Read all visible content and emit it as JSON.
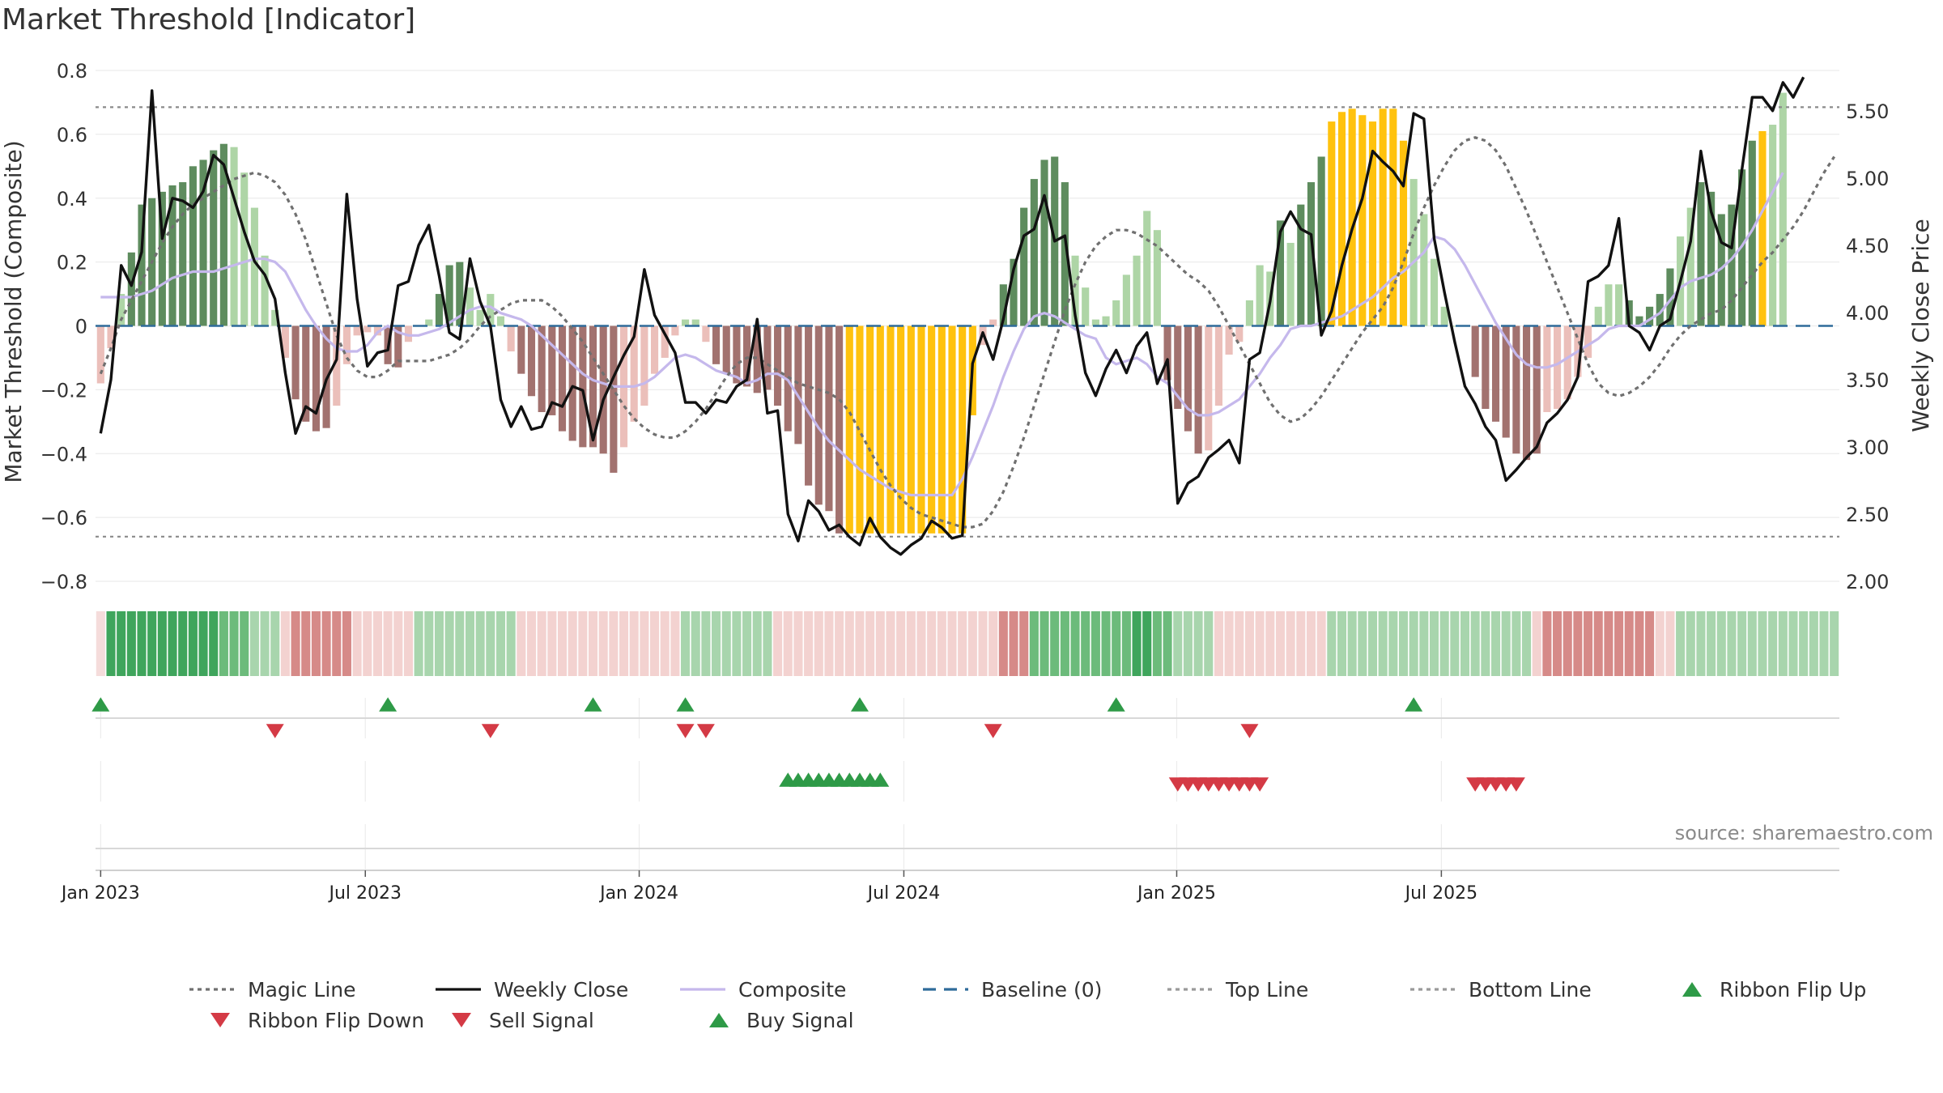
{
  "title": "Market Threshold [Indicator]",
  "source": "source: sharemaestro.com",
  "colors": {
    "bar_strong_up": "#5e8c5e",
    "bar_weak_up": "#aed5a6",
    "bar_strong_down": "#a2726f",
    "bar_weak_down": "#ebbfba",
    "bar_extreme": "#ffc20e",
    "ribbon_up_dark": "#3fa55c",
    "ribbon_up_light": "#a8d5ad",
    "ribbon_down_dark": "#d68a88",
    "ribbon_down_light": "#f3d2d0",
    "close": "#111111",
    "composite": "#c5b8ec",
    "magic": "#707070",
    "baseline": "#2f6b9a",
    "buy": "#2e9a47",
    "sell": "#d43a45"
  },
  "chart_data": {
    "type": "bar",
    "title": "Market Threshold [Indicator]",
    "ylabel": "Market Threshold (Composite)",
    "y2label": "Weekly Close Price",
    "ylim": [
      -0.8,
      0.8
    ],
    "y2lim": [
      2.0,
      5.8
    ],
    "yticks": [
      "0.8",
      "0.6",
      "0.4",
      "0.2",
      "0",
      "−0.2",
      "−0.4",
      "−0.6",
      "−0.8"
    ],
    "y2ticks": [
      "5.50",
      "5.00",
      "4.50",
      "4.00",
      "3.50",
      "3.00",
      "2.50",
      "2.00"
    ],
    "xticks": [
      "Jan 2023",
      "Jul 2023",
      "Jan 2024",
      "Jul 2024",
      "Jan 2025",
      "Jul 2025"
    ],
    "top_line": 0.685,
    "bottom_line": -0.66,
    "baseline": 0,
    "series": [
      {
        "name": "Magic Line",
        "values": [
          -0.15,
          -0.07,
          0.02,
          0.08,
          0.14,
          0.2,
          0.26,
          0.31,
          0.35,
          0.38,
          0.4,
          0.42,
          0.44,
          0.46,
          0.47,
          0.48,
          0.47,
          0.45,
          0.41,
          0.35,
          0.27,
          0.17,
          0.07,
          -0.03,
          -0.1,
          -0.14,
          -0.16,
          -0.16,
          -0.14,
          -0.11,
          -0.11,
          -0.11,
          -0.11,
          -0.1,
          -0.09,
          -0.07,
          -0.04,
          0,
          0.03,
          0.05,
          0.07,
          0.08,
          0.08,
          0.08,
          0.06,
          0.03,
          -0.01,
          -0.05,
          -0.1,
          -0.15,
          -0.2,
          -0.25,
          -0.29,
          -0.32,
          -0.34,
          -0.35,
          -0.35,
          -0.33,
          -0.3,
          -0.26,
          -0.21,
          -0.16,
          -0.12,
          -0.1,
          -0.1,
          -0.12,
          -0.14,
          -0.16,
          -0.18,
          -0.19,
          -0.2,
          -0.21,
          -0.23,
          -0.27,
          -0.33,
          -0.39,
          -0.45,
          -0.5,
          -0.54,
          -0.57,
          -0.59,
          -0.6,
          -0.61,
          -0.62,
          -0.63,
          -0.63,
          -0.62,
          -0.58,
          -0.52,
          -0.44,
          -0.35,
          -0.25,
          -0.15,
          -0.05,
          0.05,
          0.13,
          0.2,
          0.25,
          0.28,
          0.3,
          0.3,
          0.29,
          0.27,
          0.25,
          0.22,
          0.19,
          0.16,
          0.14,
          0.11,
          0.06,
          0,
          -0.06,
          -0.12,
          -0.18,
          -0.24,
          -0.28,
          -0.3,
          -0.29,
          -0.26,
          -0.22,
          -0.17,
          -0.12,
          -0.07,
          -0.02,
          0.02,
          0.06,
          0.12,
          0.2,
          0.29,
          0.37,
          0.44,
          0.5,
          0.55,
          0.58,
          0.59,
          0.58,
          0.55,
          0.5,
          0.43,
          0.36,
          0.28,
          0.2,
          0.12,
          0.04,
          -0.04,
          -0.12,
          -0.18,
          -0.21,
          -0.22,
          -0.21,
          -0.19,
          -0.16,
          -0.12,
          -0.07,
          -0.03,
          0,
          0.02,
          0.04,
          0.05,
          0.08,
          0.12,
          0.16,
          0.2,
          0.23,
          0.27,
          0.31,
          0.36,
          0.42,
          0.48,
          0.53
        ]
      },
      {
        "name": "Weekly Close",
        "values": [
          3.1,
          3.5,
          4.35,
          4.2,
          4.45,
          5.65,
          4.55,
          4.85,
          4.83,
          4.78,
          4.9,
          5.17,
          5.1,
          4.85,
          4.6,
          4.38,
          4.28,
          4.1,
          3.55,
          3.1,
          3.3,
          3.25,
          3.5,
          3.65,
          4.88,
          4.1,
          3.6,
          3.7,
          3.72,
          4.2,
          4.23,
          4.5,
          4.65,
          4.27,
          3.85,
          3.8,
          4.4,
          4.08,
          3.9,
          3.35,
          3.15,
          3.3,
          3.13,
          3.15,
          3.33,
          3.3,
          3.45,
          3.42,
          3.05,
          3.35,
          3.52,
          3.68,
          3.82,
          4.32,
          3.98,
          3.84,
          3.7,
          3.33,
          3.33,
          3.25,
          3.35,
          3.33,
          3.45,
          3.5,
          3.95,
          3.25,
          3.27,
          2.5,
          2.3,
          2.6,
          2.52,
          2.38,
          2.42,
          2.33,
          2.27,
          2.47,
          2.33,
          2.25,
          2.2,
          2.27,
          2.32,
          2.45,
          2.4,
          2.32,
          2.34,
          3.62,
          3.85,
          3.65,
          3.95,
          4.32,
          4.57,
          4.62,
          4.87,
          4.53,
          4.57,
          3.98,
          3.55,
          3.38,
          3.58,
          3.72,
          3.55,
          3.75,
          3.85,
          3.47,
          3.65,
          2.58,
          2.73,
          2.78,
          2.92,
          2.98,
          3.05,
          2.88,
          3.65,
          3.7,
          4.08,
          4.6,
          4.75,
          4.62,
          4.58,
          3.83,
          4.01,
          4.35,
          4.62,
          4.85,
          5.2,
          5.12,
          5.05,
          4.94,
          5.48,
          5.44,
          4.55,
          4.15,
          3.78,
          3.45,
          3.32,
          3.15,
          3.05,
          2.75,
          2.83,
          2.92,
          3.0,
          3.18,
          3.25,
          3.35,
          3.52,
          4.23,
          4.27,
          4.35,
          4.7,
          3.9,
          3.85,
          3.72,
          3.9,
          3.95,
          4.23,
          4.53,
          5.2,
          4.75,
          4.52,
          4.48,
          5.06,
          5.6,
          5.6,
          5.5,
          5.71,
          5.6,
          5.75
        ]
      },
      {
        "name": "Composite",
        "values": [
          0.09,
          0.09,
          0.09,
          0.09,
          0.1,
          0.11,
          0.13,
          0.15,
          0.16,
          0.17,
          0.17,
          0.17,
          0.18,
          0.19,
          0.2,
          0.21,
          0.21,
          0.2,
          0.17,
          0.11,
          0.05,
          0,
          -0.04,
          -0.07,
          -0.08,
          -0.08,
          -0.06,
          -0.02,
          0,
          -0.02,
          -0.03,
          -0.03,
          -0.02,
          -0.01,
          0.01,
          0.03,
          0.05,
          0.06,
          0.06,
          0.04,
          0.03,
          0.02,
          0,
          -0.03,
          -0.06,
          -0.09,
          -0.12,
          -0.15,
          -0.17,
          -0.18,
          -0.19,
          -0.19,
          -0.19,
          -0.18,
          -0.16,
          -0.13,
          -0.1,
          -0.09,
          -0.1,
          -0.12,
          -0.14,
          -0.15,
          -0.16,
          -0.18,
          -0.17,
          -0.15,
          -0.15,
          -0.17,
          -0.22,
          -0.27,
          -0.32,
          -0.36,
          -0.39,
          -0.42,
          -0.45,
          -0.47,
          -0.49,
          -0.51,
          -0.52,
          -0.53,
          -0.53,
          -0.53,
          -0.53,
          -0.53,
          -0.48,
          -0.41,
          -0.33,
          -0.25,
          -0.16,
          -0.08,
          -0.01,
          0.03,
          0.04,
          0.03,
          0.01,
          -0.01,
          -0.03,
          -0.04,
          -0.1,
          -0.12,
          -0.11,
          -0.1,
          -0.12,
          -0.16,
          -0.18,
          -0.22,
          -0.26,
          -0.28,
          -0.28,
          -0.27,
          -0.25,
          -0.23,
          -0.19,
          -0.15,
          -0.1,
          -0.06,
          -0.01,
          0,
          0,
          0.01,
          0.02,
          0.03,
          0.05,
          0.07,
          0.09,
          0.12,
          0.15,
          0.17,
          0.2,
          0.23,
          0.28,
          0.27,
          0.24,
          0.19,
          0.13,
          0.07,
          0.01,
          -0.04,
          -0.09,
          -0.12,
          -0.13,
          -0.13,
          -0.12,
          -0.1,
          -0.08,
          -0.06,
          -0.04,
          -0.01,
          0,
          0,
          0,
          0.02,
          0.04,
          0.08,
          0.12,
          0.14,
          0.15,
          0.16,
          0.18,
          0.21,
          0.25,
          0.3,
          0.36,
          0.42,
          0.48
        ]
      },
      {
        "name": "Threshold Bars",
        "values": [
          -0.18,
          -0.07,
          0.1,
          0.23,
          0.38,
          0.4,
          0.42,
          0.44,
          0.45,
          0.5,
          0.52,
          0.55,
          0.57,
          0.56,
          0.48,
          0.37,
          0.22,
          0.05,
          -0.1,
          -0.23,
          -0.3,
          -0.33,
          -0.32,
          -0.25,
          -0.12,
          -0.03,
          -0.02,
          -0.03,
          -0.12,
          -0.13,
          -0.05,
          0,
          0.02,
          0.1,
          0.19,
          0.2,
          0.12,
          0.05,
          0.1,
          0.03,
          -0.08,
          -0.15,
          -0.22,
          -0.27,
          -0.28,
          -0.33,
          -0.36,
          -0.38,
          -0.38,
          -0.4,
          -0.46,
          -0.38,
          -0.3,
          -0.25,
          -0.15,
          -0.1,
          -0.03,
          0.02,
          0.02,
          -0.05,
          -0.12,
          -0.15,
          -0.18,
          -0.19,
          -0.21,
          -0.2,
          -0.25,
          -0.33,
          -0.37,
          -0.5,
          -0.56,
          -0.58,
          -0.65,
          -0.65,
          -0.65,
          -0.65,
          -0.65,
          -0.65,
          -0.65,
          -0.65,
          -0.65,
          -0.65,
          -0.65,
          -0.65,
          -0.65,
          -0.28,
          -0.06,
          0.02,
          0.13,
          0.21,
          0.37,
          0.46,
          0.52,
          0.53,
          0.45,
          0.22,
          0.12,
          0.02,
          0.03,
          0.08,
          0.16,
          0.22,
          0.36,
          0.3,
          -0.17,
          -0.26,
          -0.33,
          -0.4,
          -0.39,
          -0.25,
          -0.09,
          -0.05,
          0.08,
          0.19,
          0.17,
          0.33,
          0.26,
          0.38,
          0.45,
          0.53,
          0.64,
          0.67,
          0.68,
          0.66,
          0.64,
          0.68,
          0.68,
          0.58,
          0.46,
          0.35,
          0.21,
          0.06,
          0,
          0,
          -0.16,
          -0.26,
          -0.3,
          -0.35,
          -0.4,
          -0.42,
          -0.4,
          -0.27,
          -0.26,
          -0.23,
          -0.16,
          -0.1,
          0.06,
          0.13,
          0.13,
          0.08,
          0.03,
          0.06,
          0.1,
          0.18,
          0.28,
          0.37,
          0.45,
          0.42,
          0.35,
          0.38,
          0.49,
          0.58,
          0.61,
          0.63,
          0.73
        ]
      }
    ],
    "bar_colors": [
      "wd",
      "wd",
      "wu",
      "su",
      "su",
      "su",
      "su",
      "su",
      "su",
      "su",
      "su",
      "su",
      "su",
      "wu",
      "wu",
      "wu",
      "wu",
      "wu",
      "wd",
      "sd",
      "sd",
      "sd",
      "sd",
      "wd",
      "wd",
      "wd",
      "wd",
      "wd",
      "sd",
      "sd",
      "wd",
      "wu",
      "wu",
      "su",
      "su",
      "su",
      "wu",
      "wu",
      "wu",
      "wu",
      "wd",
      "sd",
      "sd",
      "sd",
      "sd",
      "sd",
      "sd",
      "sd",
      "sd",
      "sd",
      "sd",
      "wd",
      "wd",
      "wd",
      "wd",
      "wd",
      "wd",
      "wu",
      "wu",
      "wd",
      "sd",
      "sd",
      "sd",
      "sd",
      "sd",
      "sd",
      "sd",
      "sd",
      "sd",
      "sd",
      "sd",
      "sd",
      "sd",
      "ex",
      "ex",
      "ex",
      "ex",
      "ex",
      "ex",
      "ex",
      "ex",
      "ex",
      "ex",
      "ex",
      "ex",
      "ex",
      "wd",
      "wd",
      "su",
      "su",
      "su",
      "su",
      "su",
      "su",
      "su",
      "wu",
      "wu",
      "wu",
      "wu",
      "wu",
      "wu",
      "wu",
      "wu",
      "wu",
      "sd",
      "sd",
      "sd",
      "sd",
      "wd",
      "wd",
      "wd",
      "wd",
      "wu",
      "wu",
      "wu",
      "su",
      "wu",
      "su",
      "su",
      "su",
      "ex",
      "ex",
      "ex",
      "ex",
      "ex",
      "ex",
      "ex",
      "ex",
      "wu",
      "wu",
      "wu",
      "wu",
      "wu",
      "wu",
      "sd",
      "sd",
      "sd",
      "sd",
      "sd",
      "sd",
      "sd",
      "wd",
      "wd",
      "wd",
      "wd",
      "wd",
      "wu",
      "wu",
      "wu",
      "su",
      "su",
      "su",
      "su",
      "su",
      "wu",
      "wu",
      "su",
      "su",
      "su",
      "su",
      "su",
      "su",
      "ex"
    ],
    "ribbon": [
      "l",
      "ud",
      "ud",
      "ud",
      "ud",
      "ud",
      "ud",
      "ud",
      "ud",
      "ud",
      "ud",
      "ud",
      "um",
      "um",
      "um",
      "ul",
      "ul",
      "ul",
      "dl",
      "dd",
      "dd",
      "dd",
      "dd",
      "dd",
      "dd",
      "dl",
      "dl",
      "dl",
      "dl",
      "dl",
      "dl",
      "ul",
      "ul",
      "ul",
      "ul",
      "ul",
      "ul",
      "ul",
      "ul",
      "ul",
      "ul",
      "dl",
      "dl",
      "dl",
      "dl",
      "dl",
      "dl",
      "dl",
      "dl",
      "dl",
      "dl",
      "dl",
      "dl",
      "dl",
      "dl",
      "dl",
      "dl",
      "ul",
      "ul",
      "ul",
      "ul",
      "ul",
      "ul",
      "ul",
      "ul",
      "ul",
      "dl",
      "dl",
      "dl",
      "dl",
      "dl",
      "dl",
      "dl",
      "dl",
      "dl",
      "dl",
      "dl",
      "dl",
      "dl",
      "dl",
      "dl",
      "dl",
      "dl",
      "dl",
      "dl",
      "dl",
      "dl",
      "dl",
      "dd",
      "dd",
      "dd",
      "um",
      "um",
      "um",
      "um",
      "um",
      "um",
      "um",
      "um",
      "um",
      "um",
      "ud",
      "ud",
      "um",
      "um",
      "ul",
      "ul",
      "ul",
      "ul",
      "dl",
      "dl",
      "dl",
      "dl",
      "dl",
      "dl",
      "dl",
      "dl",
      "dl",
      "dl",
      "dl",
      "ul",
      "ul",
      "ul",
      "ul",
      "ul",
      "ul",
      "ul",
      "ul",
      "ul",
      "ul",
      "ul",
      "ul",
      "ul",
      "ul",
      "ul",
      "ul",
      "ul",
      "ul",
      "ul",
      "ul",
      "dl",
      "dd",
      "dd",
      "dd",
      "dd",
      "dd",
      "dd",
      "dd",
      "dd",
      "dd",
      "dd",
      "dd",
      "dl",
      "dl",
      "ul",
      "ul",
      "ul",
      "ul",
      "ul",
      "ul",
      "ul",
      "ul",
      "ul",
      "ul",
      "ul",
      "ul",
      "ul",
      "ul",
      "ul",
      "ul"
    ],
    "ribbon_flip_up": [
      1,
      29,
      49,
      58,
      75,
      100,
      129
    ],
    "ribbon_flip_down": [
      16,
      37,
      56,
      58,
      86,
      111
    ],
    "buy_signal": [
      67,
      68,
      69,
      70,
      71,
      72,
      73,
      74,
      75,
      76
    ],
    "sell_signal": [
      105,
      106,
      107,
      108,
      109,
      110,
      111,
      112,
      113,
      134,
      135,
      136,
      137,
      138
    ]
  },
  "legend": [
    {
      "label": "Magic Line",
      "kind": "dotted",
      "color": "#707070"
    },
    {
      "label": "Weekly Close",
      "kind": "solid",
      "color": "#111111"
    },
    {
      "label": "Composite",
      "kind": "solid",
      "color": "#c5b8ec"
    },
    {
      "label": "Baseline (0)",
      "kind": "dashed",
      "color": "#2f6b9a"
    },
    {
      "label": "Top Line",
      "kind": "dotted",
      "color": "#9a9a9a"
    },
    {
      "label": "Bottom Line",
      "kind": "dotted",
      "color": "#9a9a9a"
    },
    {
      "label": "Ribbon Flip Up",
      "kind": "tri-up",
      "color": "#2e9a47"
    },
    {
      "label": "Ribbon Flip Down",
      "kind": "tri-down",
      "color": "#d43a45"
    },
    {
      "label": "Sell Signal",
      "kind": "tri-down",
      "color": "#d43a45"
    },
    {
      "label": "Buy Signal",
      "kind": "tri-up",
      "color": "#2e9a47"
    }
  ]
}
